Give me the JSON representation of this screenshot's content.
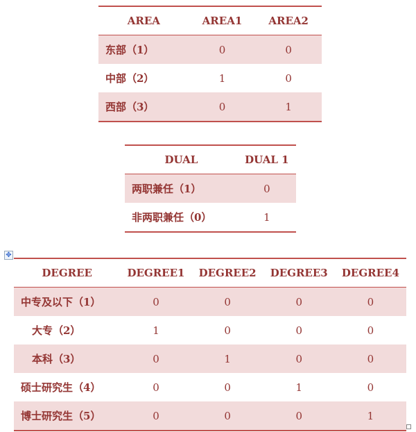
{
  "area_table": {
    "headers": [
      "AREA",
      "AREA1",
      "AREA2"
    ],
    "rows": [
      [
        "东部（1）",
        "0",
        "0"
      ],
      [
        "中部（2）",
        "1",
        "0"
      ],
      [
        "西部（3）",
        "0",
        "1"
      ]
    ]
  },
  "dual_table": {
    "headers": [
      "DUAL",
      "DUAL 1"
    ],
    "rows": [
      [
        "两职兼任（1）",
        "0"
      ],
      [
        "非两职兼任（0）",
        "1"
      ]
    ]
  },
  "degree_table": {
    "headers": [
      "DEGREE",
      "DEGREE1",
      "DEGREE2",
      "DEGREE3",
      "DEGREE4"
    ],
    "rows": [
      [
        "中专及以下（1）",
        "0",
        "0",
        "0",
        "0"
      ],
      [
        "大专（2）",
        "1",
        "0",
        "0",
        "0"
      ],
      [
        "本科（3）",
        "0",
        "1",
        "0",
        "0"
      ],
      [
        "硕士研究生（4）",
        "0",
        "0",
        "1",
        "0"
      ],
      [
        "博士研究生（5）",
        "0",
        "0",
        "0",
        "1"
      ]
    ]
  },
  "colors": {
    "border": "#c0504d",
    "text": "#943634",
    "shade": "#f2dbdb"
  }
}
